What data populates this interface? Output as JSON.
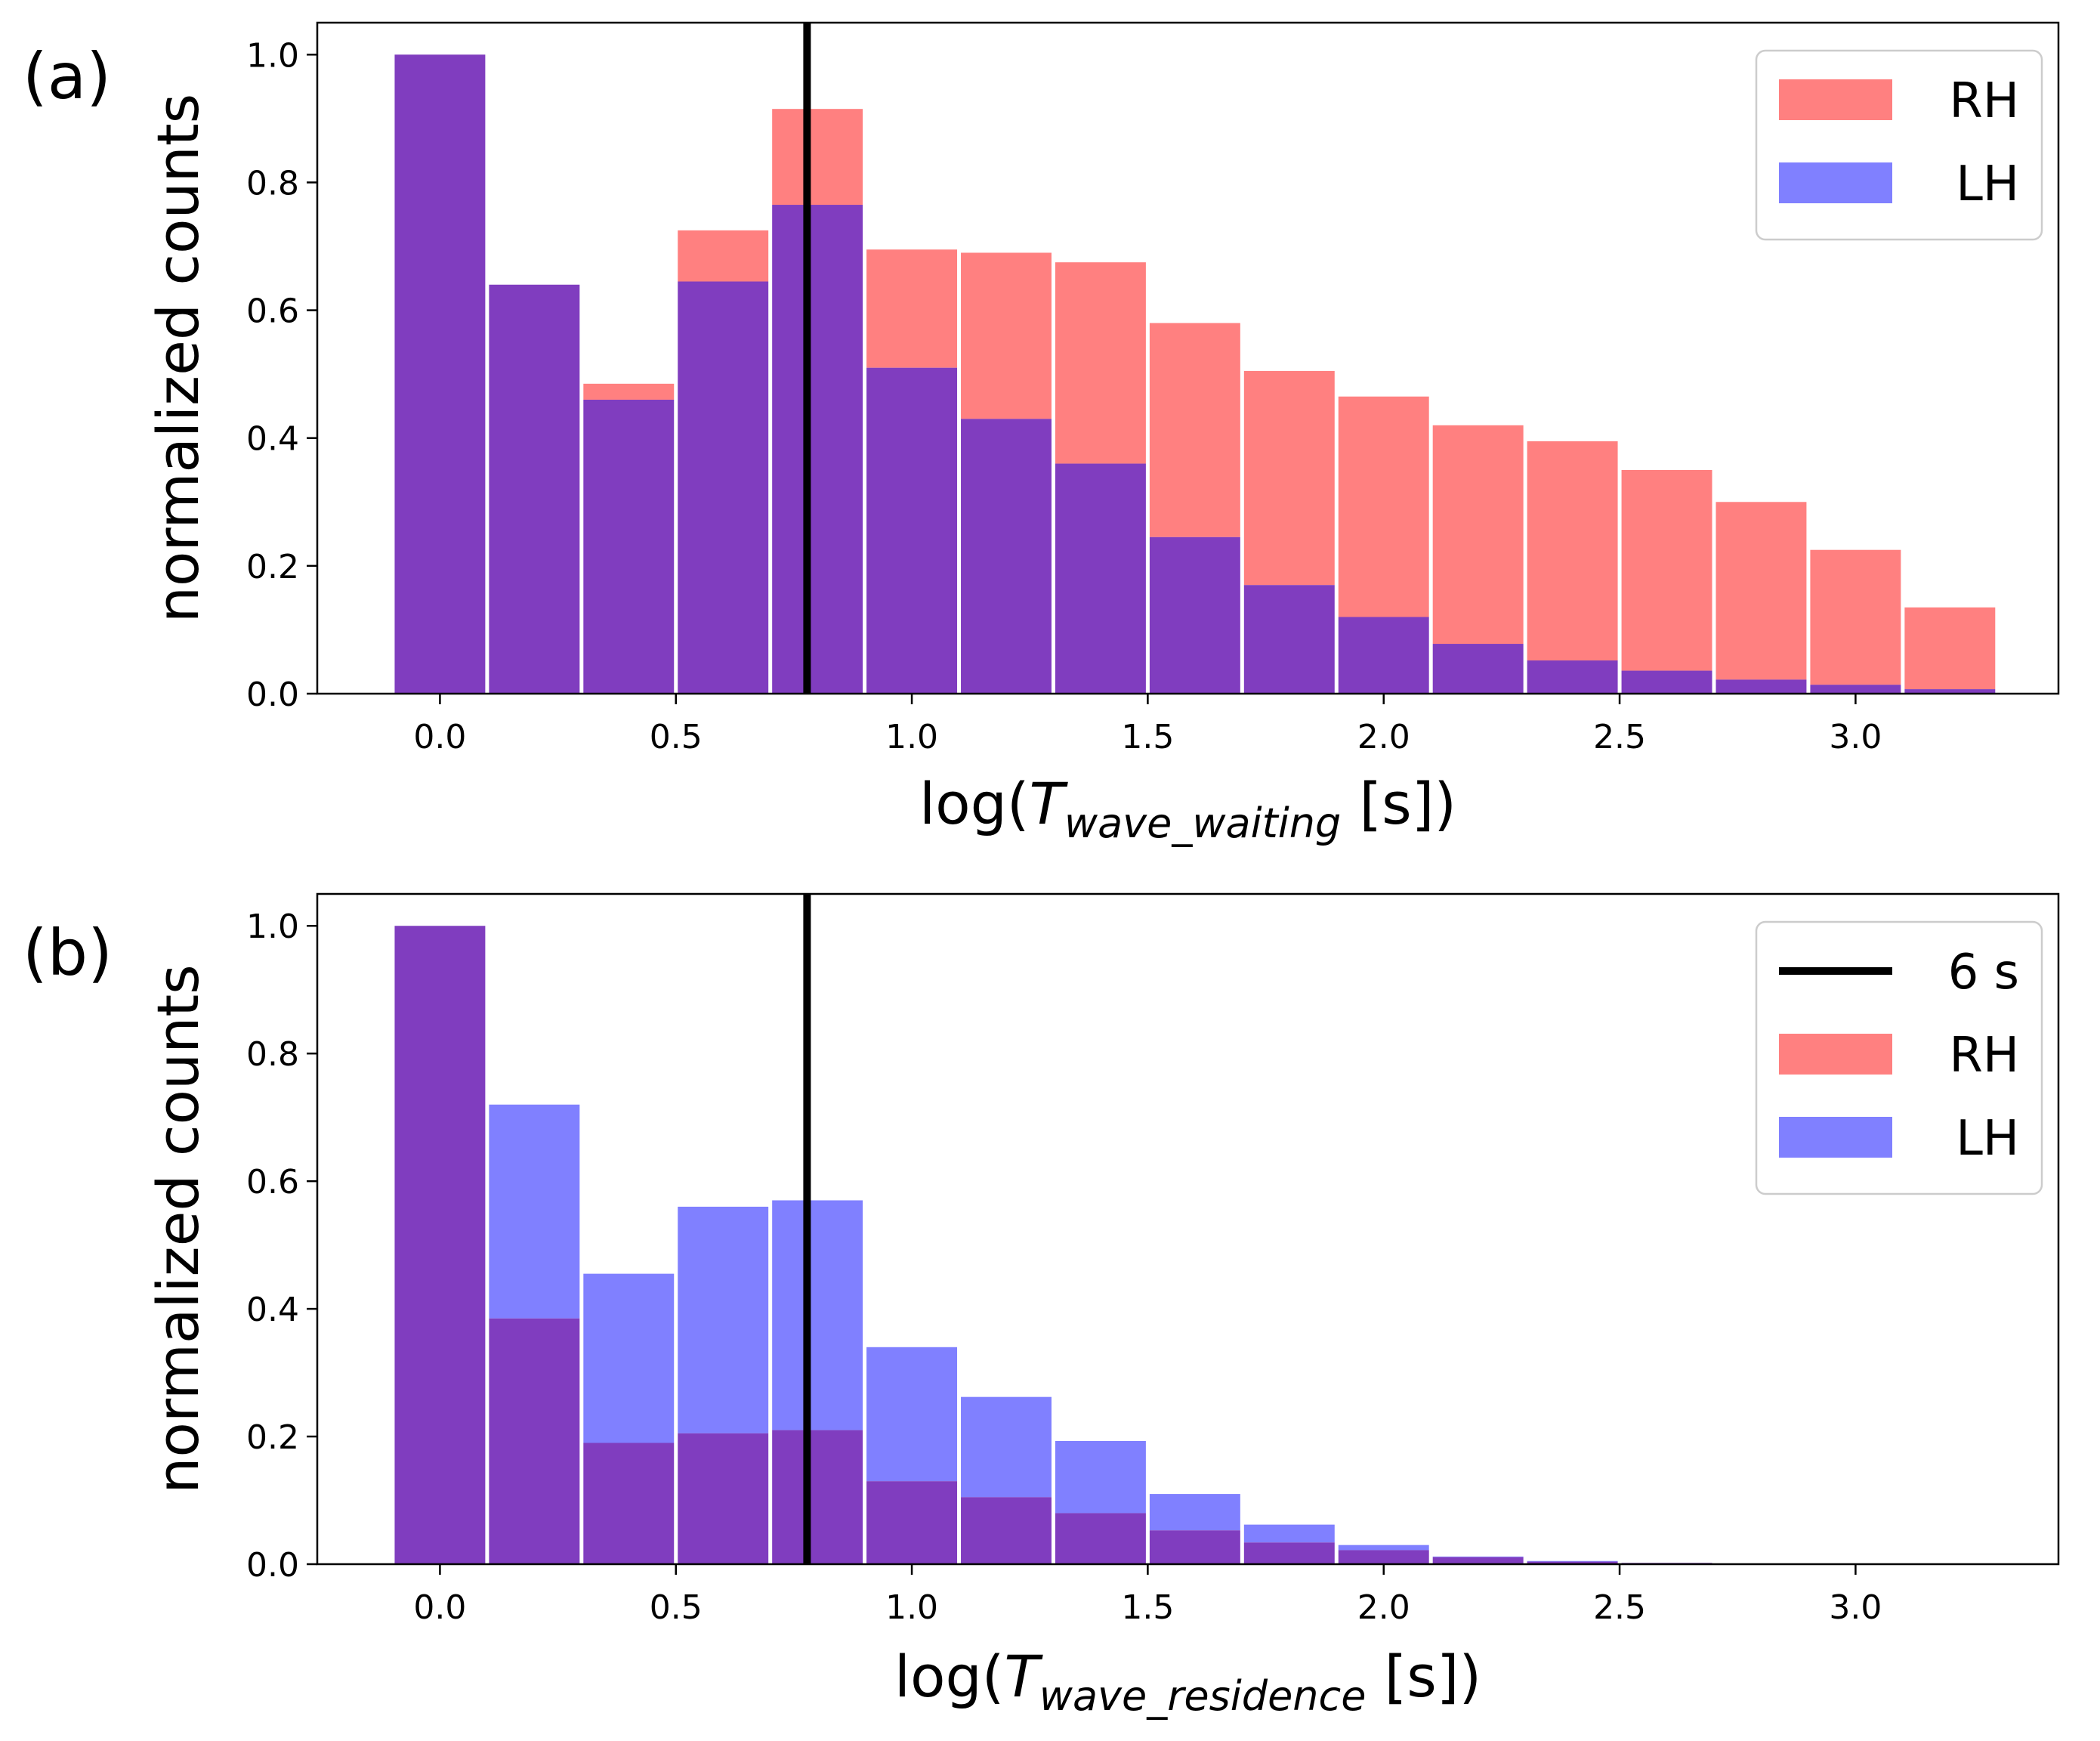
{
  "chart_data": [
    {
      "type": "bar",
      "panel_label": "(a)",
      "xlabel": {
        "prefix": "log(",
        "symbol": "T",
        "subscript": "wave_waiting",
        "suffix": " [s])"
      },
      "ylabel": "normalized counts",
      "xlim": [
        -0.26,
        3.43
      ],
      "ylim": [
        0,
        1.05
      ],
      "xticks": [
        0.0,
        0.5,
        1.0,
        1.5,
        2.0,
        2.5,
        3.0
      ],
      "xtick_labels": [
        "0.0",
        "0.5",
        "1.0",
        "1.5",
        "2.0",
        "2.5",
        "3.0"
      ],
      "yticks": [
        0.0,
        0.2,
        0.4,
        0.6,
        0.8,
        1.0
      ],
      "ytick_labels": [
        "0.0",
        "0.2",
        "0.4",
        "0.6",
        "0.8",
        "1.0"
      ],
      "bin_centers": [
        0.0,
        0.2,
        0.4,
        0.6,
        0.8,
        1.0,
        1.2,
        1.4,
        1.6,
        1.8,
        2.0,
        2.2,
        2.4,
        2.6,
        2.8,
        3.0,
        3.2
      ],
      "series": [
        {
          "name": "RH",
          "color": "#ff8080",
          "values": [
            1.0,
            0.64,
            0.485,
            0.725,
            0.915,
            0.695,
            0.69,
            0.675,
            0.58,
            0.505,
            0.465,
            0.42,
            0.395,
            0.35,
            0.3,
            0.225,
            0.135
          ]
        },
        {
          "name": "LH",
          "color": "#8080ff",
          "values": [
            1.0,
            0.64,
            0.46,
            0.645,
            0.765,
            0.51,
            0.43,
            0.36,
            0.245,
            0.17,
            0.12,
            0.078,
            0.052,
            0.036,
            0.022,
            0.014,
            0.007
          ]
        }
      ],
      "overlap_color": "#803dbf",
      "vline": {
        "x": 0.778,
        "color": "#000000"
      },
      "legend": {
        "position": "top-right",
        "entries": [
          "RH",
          "LH"
        ]
      }
    },
    {
      "type": "bar",
      "panel_label": "(b)",
      "xlabel": {
        "prefix": "log(",
        "symbol": "T",
        "subscript": "wave_residence",
        "suffix": " [s])"
      },
      "ylabel": "normalized counts",
      "xlim": [
        -0.26,
        3.43
      ],
      "ylim": [
        0,
        1.05
      ],
      "xticks": [
        0.0,
        0.5,
        1.0,
        1.5,
        2.0,
        2.5,
        3.0
      ],
      "xtick_labels": [
        "0.0",
        "0.5",
        "1.0",
        "1.5",
        "2.0",
        "2.5",
        "3.0"
      ],
      "yticks": [
        0.0,
        0.2,
        0.4,
        0.6,
        0.8,
        1.0
      ],
      "ytick_labels": [
        "0.0",
        "0.2",
        "0.4",
        "0.6",
        "0.8",
        "1.0"
      ],
      "bin_centers": [
        0.0,
        0.2,
        0.4,
        0.6,
        0.8,
        1.0,
        1.2,
        1.4,
        1.6,
        1.8,
        2.0,
        2.2,
        2.4,
        2.6,
        2.8,
        3.0,
        3.2
      ],
      "series": [
        {
          "name": "RH",
          "color": "#ff8080",
          "values": [
            1.0,
            0.385,
            0.19,
            0.205,
            0.21,
            0.13,
            0.105,
            0.08,
            0.053,
            0.034,
            0.022,
            0.011,
            0.004,
            0.002,
            0.001,
            0.0,
            0.0
          ]
        },
        {
          "name": "LH",
          "color": "#8080ff",
          "values": [
            1.0,
            0.72,
            0.455,
            0.56,
            0.57,
            0.34,
            0.262,
            0.193,
            0.11,
            0.062,
            0.03,
            0.012,
            0.005,
            0.002,
            0.001,
            0.0,
            0.0
          ]
        }
      ],
      "overlap_color": "#803dbf",
      "vline": {
        "x": 0.778,
        "color": "#000000"
      },
      "legend": {
        "position": "top-right",
        "entries": [
          "6 s",
          "RH",
          "LH"
        ]
      }
    }
  ]
}
